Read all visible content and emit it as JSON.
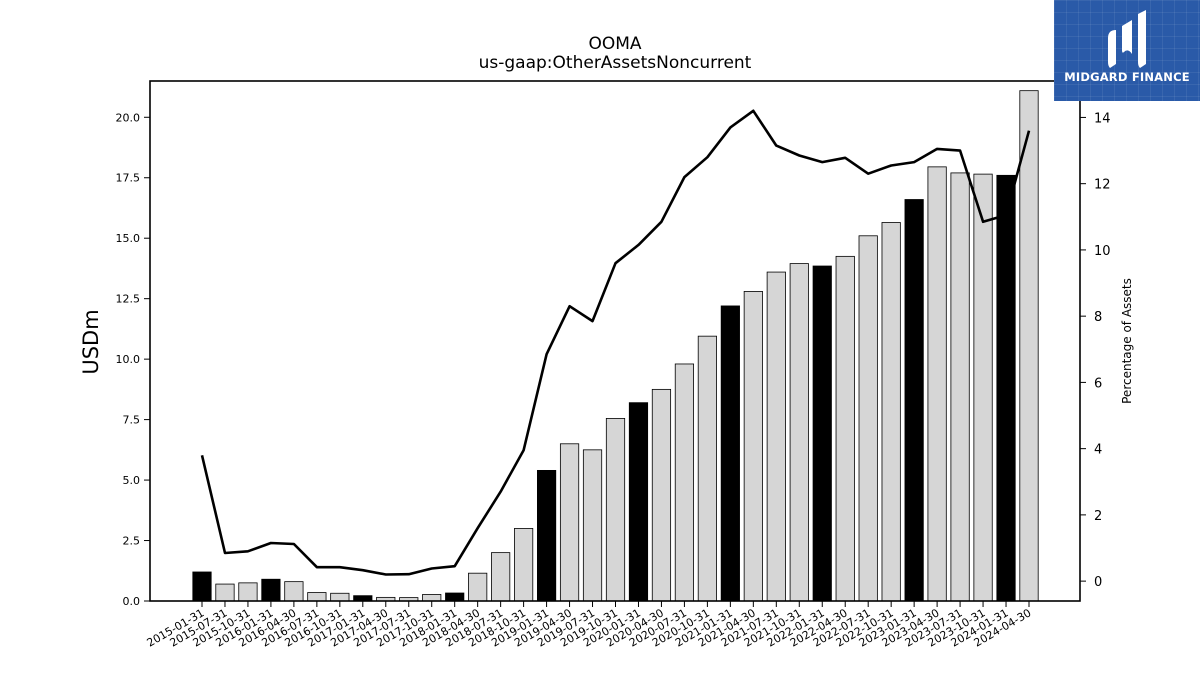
{
  "chart_data": {
    "type": "bar",
    "title": "OOMA",
    "subtitle": "us-gaap:OtherAssetsNoncurrent",
    "ylabel": "USDm",
    "y2label": "Percentage of Assets",
    "ylim": [
      0,
      21.5
    ],
    "y2lim": [
      -0.6,
      15.1
    ],
    "yticks": [
      "0.0",
      "2.5",
      "5.0",
      "7.5",
      "10.0",
      "12.5",
      "15.0",
      "17.5",
      "20.0"
    ],
    "y2ticks": [
      "0",
      "2",
      "4",
      "6",
      "8",
      "10",
      "12",
      "14"
    ],
    "categories": [
      "2015-01-31",
      "2015-07-31",
      "2015-10-31",
      "2016-01-31",
      "2016-04-30",
      "2016-07-31",
      "2016-10-31",
      "2017-01-31",
      "2017-04-30",
      "2017-07-31",
      "2017-10-31",
      "2018-01-31",
      "2018-04-30",
      "2018-07-31",
      "2018-10-31",
      "2019-01-31",
      "2019-04-30",
      "2019-07-31",
      "2019-10-31",
      "2020-01-31",
      "2020-04-30",
      "2020-07-31",
      "2020-10-31",
      "2021-01-31",
      "2021-04-30",
      "2021-07-31",
      "2021-10-31",
      "2022-01-31",
      "2022-04-30",
      "2022-07-31",
      "2022-10-31",
      "2023-01-31",
      "2023-04-30",
      "2023-07-31",
      "2023-10-31",
      "2024-01-31",
      "2024-04-30"
    ],
    "series": [
      {
        "type": "bar",
        "values": [
          1.2,
          0.7,
          0.75,
          0.9,
          0.8,
          0.35,
          0.32,
          0.22,
          0.15,
          0.14,
          0.27,
          0.33,
          1.15,
          2.0,
          3.0,
          5.4,
          6.5,
          6.25,
          7.55,
          8.2,
          8.75,
          9.8,
          10.95,
          12.2,
          12.8,
          13.6,
          13.95,
          13.85,
          14.25,
          15.1,
          15.65,
          16.6,
          17.95,
          17.7,
          17.65,
          17.6,
          21.1
        ],
        "highlight": [
          true,
          false,
          false,
          true,
          false,
          false,
          false,
          true,
          false,
          false,
          false,
          true,
          false,
          false,
          false,
          true,
          false,
          false,
          false,
          true,
          false,
          false,
          false,
          true,
          false,
          false,
          false,
          true,
          false,
          false,
          false,
          true,
          false,
          false,
          false,
          true,
          false
        ]
      },
      {
        "type": "line",
        "axis": "right",
        "values": [
          3.8,
          0.85,
          0.9,
          1.15,
          1.12,
          0.42,
          0.42,
          0.33,
          0.2,
          0.21,
          0.38,
          0.45,
          1.6,
          2.7,
          3.95,
          6.85,
          8.3,
          7.85,
          9.6,
          10.15,
          10.85,
          12.2,
          12.8,
          13.7,
          14.2,
          13.15,
          12.85,
          12.65,
          12.78,
          12.3,
          12.55,
          12.65,
          13.05,
          13.0,
          10.85,
          11.05,
          13.6
        ]
      }
    ],
    "colors": {
      "bar_default": "#d6d6d6",
      "bar_highlight": "#000000",
      "bar_edge": "#000000",
      "line": "#000000"
    },
    "grid": false,
    "legend": "none"
  },
  "logo": {
    "text": "MIDGARD FINANCE",
    "background": "#2a5aa8"
  }
}
